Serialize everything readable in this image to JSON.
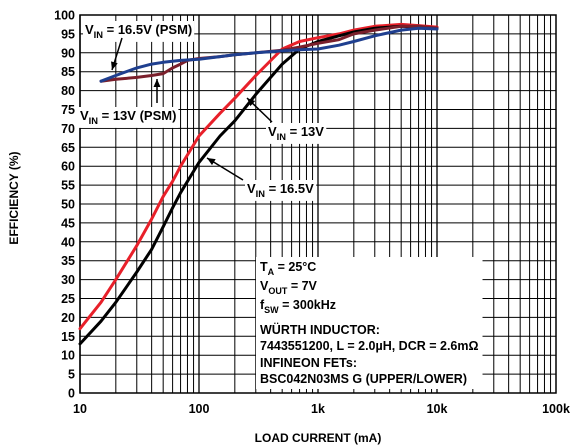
{
  "chart_data": {
    "type": "line",
    "xlabel": "LOAD CURRENT (mA)",
    "ylabel": "EFFICIENCY (%)",
    "xscale": "log",
    "xlim": [
      10,
      100000
    ],
    "ylim": [
      0,
      100
    ],
    "grid": true,
    "x_ticks": [
      {
        "value": 10,
        "label": "10"
      },
      {
        "value": 100,
        "label": "100"
      },
      {
        "value": 1000,
        "label": "1k"
      },
      {
        "value": 10000,
        "label": "10k"
      },
      {
        "value": 100000,
        "label": "100k"
      }
    ],
    "y_ticks": [
      0,
      5,
      10,
      15,
      20,
      25,
      30,
      35,
      40,
      45,
      50,
      55,
      60,
      65,
      70,
      75,
      80,
      85,
      90,
      95,
      100
    ],
    "series": [
      {
        "label": "VIN = 13V",
        "color": "#e8202a",
        "x": [
          10,
          15,
          20,
          30,
          40,
          50,
          60,
          70,
          80,
          100,
          150,
          200,
          300,
          500,
          700,
          1000,
          1500,
          2000,
          3000,
          5000,
          7000,
          10000
        ],
        "y": [
          17,
          24,
          30,
          39,
          46,
          52,
          56,
          60,
          63,
          68,
          74,
          78,
          84,
          91,
          93,
          94,
          95,
          96,
          97,
          97.5,
          97.2,
          96.8
        ]
      },
      {
        "label": "VIN = 16.5V",
        "color": "#000000",
        "x": [
          10,
          15,
          20,
          30,
          40,
          50,
          60,
          70,
          80,
          100,
          150,
          200,
          300,
          500,
          700,
          1000,
          1500,
          2000,
          3000,
          5000,
          7000,
          10000
        ],
        "y": [
          13,
          19,
          24,
          32,
          38,
          44,
          49,
          53,
          56,
          61,
          68,
          72,
          79,
          87,
          91,
          93,
          94.5,
          95.5,
          96.5,
          97,
          96.8,
          96.5
        ]
      },
      {
        "label": "VIN = 13V (PSM)",
        "color": "#7a1f2b",
        "x": [
          15,
          20,
          30,
          40,
          50,
          60,
          70,
          80,
          100,
          150,
          200,
          300,
          500,
          700,
          1000,
          1500,
          2000,
          3000,
          5000,
          7000,
          10000
        ],
        "y": [
          82.5,
          83,
          83.5,
          84,
          84.5,
          86,
          87,
          88,
          88.5,
          89,
          89.5,
          90,
          90.7,
          91.5,
          92.5,
          93.5,
          95,
          96,
          97,
          97,
          96.5
        ]
      },
      {
        "label": "VIN = 16.5V (PSM)",
        "color": "#1f3f8f",
        "x": [
          15,
          20,
          30,
          40,
          50,
          70,
          100,
          150,
          200,
          300,
          500,
          700,
          1000,
          1500,
          2000,
          3000,
          5000,
          7000,
          10000
        ],
        "y": [
          82.5,
          84,
          86,
          87,
          87.5,
          88,
          88.3,
          89,
          89.5,
          90,
          90.5,
          90.8,
          91,
          92,
          93,
          94.5,
          96,
          96.5,
          96.3
        ]
      }
    ],
    "annotations": {
      "psm_165": {
        "main": "V",
        "sub": "IN",
        "rest": " = 16.5V (PSM)"
      },
      "psm_13": {
        "main": "V",
        "sub": "IN",
        "rest": " = 13V (PSM)"
      },
      "vin_13": {
        "main": "V",
        "sub": "IN",
        "rest": " = 13V"
      },
      "vin_165": {
        "main": "V",
        "sub": "IN",
        "rest": " = 16.5V"
      },
      "conditions": [
        {
          "main": "T",
          "sub": "A",
          "rest": " = 25°C"
        },
        {
          "main": "V",
          "sub": "OUT",
          "rest": " = 7V"
        },
        {
          "main": "f",
          "sub": "SW",
          "rest": " = 300kHz"
        },
        {
          "main": "",
          "sub": "",
          "rest": "WÜRTH INDUCTOR:"
        },
        {
          "main": "",
          "sub": "",
          "rest": "7443551200, L = 2.0µH, DCR = 2.6mΩ"
        },
        {
          "main": "",
          "sub": "",
          "rest": "INFINEON FETs:"
        },
        {
          "main": "",
          "sub": "",
          "rest": "BSC042N03MS G (UPPER/LOWER)"
        }
      ]
    }
  }
}
